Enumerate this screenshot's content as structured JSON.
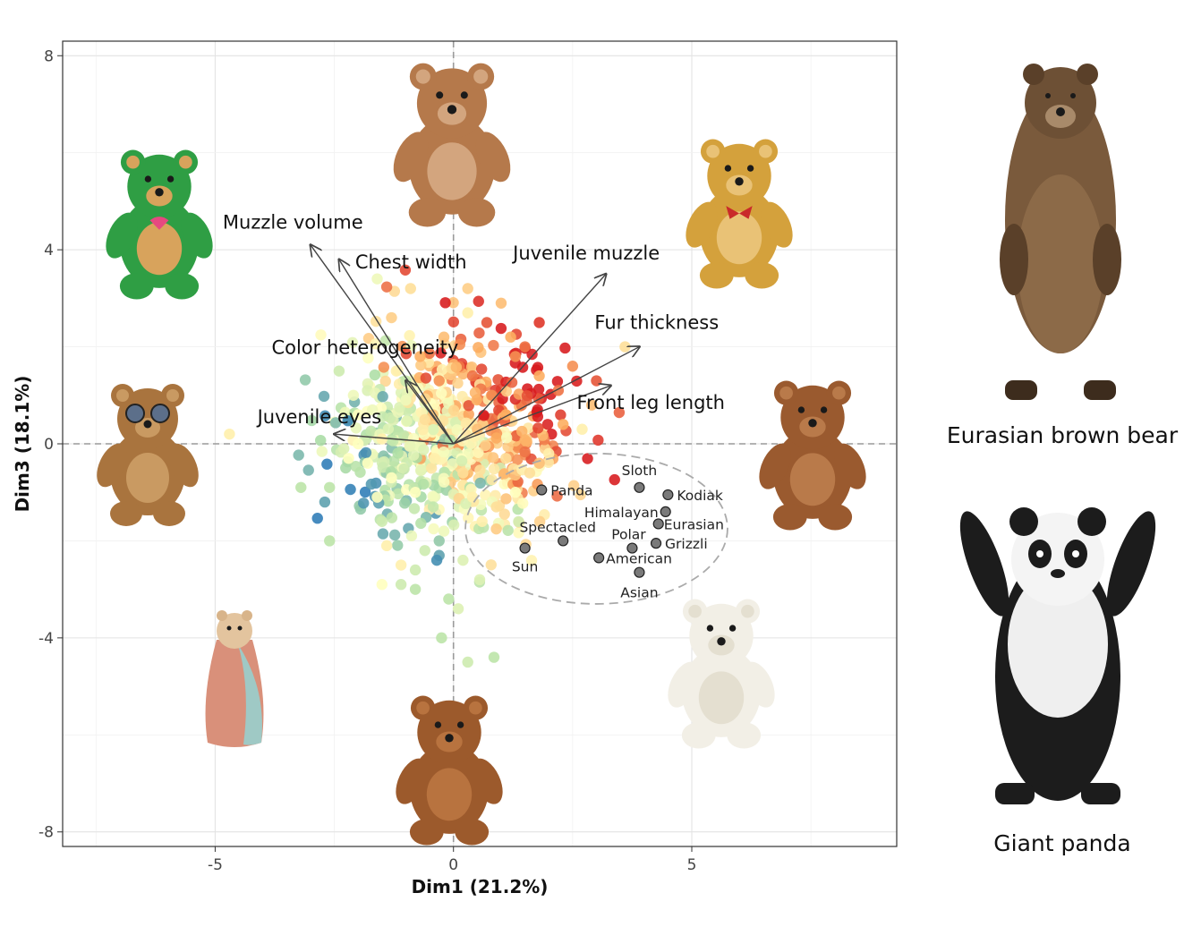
{
  "chart_data": {
    "type": "scatter",
    "title": "",
    "xlabel": "Dim1 (21.2%)",
    "ylabel": "Dim3 (18.1%)",
    "xlim": [
      -8.2,
      9.3
    ],
    "ylim": [
      -8.3,
      8.3
    ],
    "x_ticks": [
      -5,
      0,
      5
    ],
    "y_ticks": [
      -8,
      -4,
      0,
      4,
      8
    ],
    "grid": true,
    "reference_lines": {
      "x": 0,
      "y": 0,
      "style": "dashed"
    },
    "loadings": [
      {
        "name": "Muzzle volume",
        "x": -3.0,
        "y": 4.1
      },
      {
        "name": "Chest width",
        "x": -2.4,
        "y": 3.8
      },
      {
        "name": "Juvenile muzzle",
        "x": 3.2,
        "y": 3.5
      },
      {
        "name": "Fur thickness",
        "x": 3.9,
        "y": 2.0
      },
      {
        "name": "Front leg length",
        "x": 3.3,
        "y": 1.2
      },
      {
        "name": "Color heterogeneity",
        "x": -1.0,
        "y": 1.3
      },
      {
        "name": "Juvenile eyes",
        "x": -2.5,
        "y": 0.2
      }
    ],
    "bear_species": [
      {
        "name": "Sloth",
        "x": 3.9,
        "y": -0.9
      },
      {
        "name": "Kodiak",
        "x": 4.5,
        "y": -1.05
      },
      {
        "name": "Panda",
        "x": 1.85,
        "y": -0.95
      },
      {
        "name": "Himalayan",
        "x": 4.45,
        "y": -1.4
      },
      {
        "name": "Eurasian",
        "x": 4.3,
        "y": -1.65
      },
      {
        "name": "Spectacled",
        "x": 2.3,
        "y": -2.0
      },
      {
        "name": "Sun",
        "x": 1.5,
        "y": -2.15
      },
      {
        "name": "Polar",
        "x": 3.75,
        "y": -2.15
      },
      {
        "name": "Grizzli",
        "x": 4.25,
        "y": -2.05
      },
      {
        "name": "American",
        "x": 3.05,
        "y": -2.35
      },
      {
        "name": "Asian",
        "x": 3.9,
        "y": -2.65
      }
    ],
    "bear_species_ellipse": {
      "center": [
        3.0,
        -1.75
      ],
      "radius_x": 5.5,
      "radius_y": 3.1
    },
    "teddy_points": [
      {
        "x": -4.7,
        "y": 0.2,
        "c": 0.55
      },
      {
        "x": -3.2,
        "y": -0.9,
        "c": 0.3
      },
      {
        "x": -2.6,
        "y": -0.9,
        "c": 0.3
      },
      {
        "x": -2.7,
        "y": -1.2,
        "c": 0.1
      },
      {
        "x": -2.6,
        "y": -2.0,
        "c": 0.3
      },
      {
        "x": -2.2,
        "y": -0.3,
        "c": 0.5
      },
      {
        "x": -2.0,
        "y": 0.6,
        "c": 0.5
      },
      {
        "x": -2.4,
        "y": 1.5,
        "c": 0.35
      },
      {
        "x": -2.1,
        "y": 1.0,
        "c": 0.45
      },
      {
        "x": -1.7,
        "y": 0.7,
        "c": 0.45
      },
      {
        "x": -1.5,
        "y": 0.1,
        "c": 0.55
      },
      {
        "x": -1.8,
        "y": -0.4,
        "c": 0.5
      },
      {
        "x": -1.3,
        "y": -0.7,
        "c": 0.5
      },
      {
        "x": -1.6,
        "y": -1.1,
        "c": 0.5
      },
      {
        "x": -1.5,
        "y": -1.6,
        "c": 0.35
      },
      {
        "x": -1.4,
        "y": -2.1,
        "c": 0.55
      },
      {
        "x": -1.1,
        "y": -2.5,
        "c": 0.55
      },
      {
        "x": -1.5,
        "y": -2.9,
        "c": 0.5
      },
      {
        "x": -1.1,
        "y": -2.9,
        "c": 0.35
      },
      {
        "x": -0.8,
        "y": -3.0,
        "c": 0.3
      },
      {
        "x": -0.8,
        "y": -2.6,
        "c": 0.35
      },
      {
        "x": -0.6,
        "y": -2.2,
        "c": 0.35
      },
      {
        "x": -0.3,
        "y": -2.0,
        "c": 0.2
      },
      {
        "x": -0.3,
        "y": -2.3,
        "c": 0.1
      },
      {
        "x": -0.35,
        "y": -2.4,
        "c": 0.05
      },
      {
        "x": -0.2,
        "y": -1.8,
        "c": 0.45
      },
      {
        "x": 0.2,
        "y": -2.4,
        "c": 0.4
      },
      {
        "x": -0.1,
        "y": -3.2,
        "c": 0.3
      },
      {
        "x": 0.1,
        "y": -3.4,
        "c": 0.4
      },
      {
        "x": -0.25,
        "y": -4.0,
        "c": 0.3
      },
      {
        "x": 0.3,
        "y": -4.5,
        "c": 0.35
      },
      {
        "x": 0.85,
        "y": -4.4,
        "c": 0.3
      },
      {
        "x": 0.55,
        "y": -2.8,
        "c": 0.4
      },
      {
        "x": 0.6,
        "y": -1.6,
        "c": 0.55
      },
      {
        "x": 0.9,
        "y": -1.3,
        "c": 0.6
      },
      {
        "x": 1.3,
        "y": -1.0,
        "c": 0.5
      },
      {
        "x": 1.6,
        "y": -0.6,
        "c": 0.6
      },
      {
        "x": 1.8,
        "y": -0.4,
        "c": 0.7
      },
      {
        "x": 2.0,
        "y": -0.2,
        "c": 0.55
      },
      {
        "x": 2.3,
        "y": 0.4,
        "c": 0.75
      },
      {
        "x": 2.7,
        "y": 0.3,
        "c": 0.55
      },
      {
        "x": 2.9,
        "y": 0.8,
        "c": 0.7
      },
      {
        "x": 3.0,
        "y": 1.3,
        "c": 0.9
      },
      {
        "x": 3.6,
        "y": 2.0,
        "c": 0.6
      },
      {
        "x": 2.2,
        "y": 1.1,
        "c": 0.85
      },
      {
        "x": 1.8,
        "y": 2.5,
        "c": 0.95
      },
      {
        "x": 1.5,
        "y": 2.0,
        "c": 0.85
      },
      {
        "x": 1.2,
        "y": 2.2,
        "c": 0.75
      },
      {
        "x": 0.7,
        "y": 2.5,
        "c": 0.9
      },
      {
        "x": 0.3,
        "y": 3.2,
        "c": 0.65
      },
      {
        "x": 0.3,
        "y": 2.7,
        "c": 0.55
      },
      {
        "x": -0.9,
        "y": 3.2,
        "c": 0.6
      },
      {
        "x": -1.3,
        "y": 2.6,
        "c": 0.65
      },
      {
        "x": -1.6,
        "y": 3.4,
        "c": 0.45
      },
      {
        "x": -0.2,
        "y": 2.2,
        "c": 0.7
      },
      {
        "x": -0.7,
        "y": 1.8,
        "c": 0.75
      },
      {
        "x": -0.3,
        "y": 1.3,
        "c": 0.8
      },
      {
        "x": 0.4,
        "y": 1.4,
        "c": 0.85
      },
      {
        "x": 0.8,
        "y": 1.0,
        "c": 0.8
      },
      {
        "x": 1.1,
        "y": 0.6,
        "c": 0.75
      },
      {
        "x": 0.5,
        "y": 0.3,
        "c": 0.7
      },
      {
        "x": -0.6,
        "y": 0.5,
        "c": 0.6
      },
      {
        "x": -1.0,
        "y": 0.9,
        "c": 0.45
      },
      {
        "x": -0.4,
        "y": -0.3,
        "c": 0.55
      },
      {
        "x": 0.2,
        "y": -0.6,
        "c": 0.6
      },
      {
        "x": -0.8,
        "y": -1.0,
        "c": 0.5
      },
      {
        "x": 0.4,
        "y": -1.1,
        "c": 0.55
      },
      {
        "x": 1.3,
        "y": 1.8,
        "c": 0.8
      },
      {
        "x": 1.8,
        "y": 1.4,
        "c": 0.75
      },
      {
        "x": 2.5,
        "y": 1.6,
        "c": 0.8
      },
      {
        "x": 1.0,
        "y": 2.9,
        "c": 0.7
      },
      {
        "x": -2.0,
        "y": 0.0,
        "c": 0.5
      },
      {
        "x": -1.2,
        "y": 1.5,
        "c": 0.55
      },
      {
        "x": -2.3,
        "y": -0.1,
        "c": 0.4
      },
      {
        "x": 1.1,
        "y": -0.3,
        "c": 0.6
      }
    ],
    "cloud": {
      "center": [
        0.0,
        0.2
      ],
      "spread_x": 1.15,
      "spread_y": 1.05,
      "count": 620
    },
    "color_scale": {
      "low": "#2c7bb6",
      "mid_low": "#abdda4",
      "mid": "#ffffbf",
      "mid_high": "#fdae61",
      "high": "#d7191c"
    }
  },
  "side_labels": {
    "brown_bear": "Eurasian brown bear",
    "panda": "Giant panda"
  },
  "images": {
    "green_bear": "green teddy bear",
    "tan_bear": "tan teddy bear",
    "golden_bear": "golden teddy bear with red bow",
    "big_eyed_bear": "big-eyed teddy bear",
    "brown_standing_bear": "brown standing teddy bear",
    "polar_bear": "white polar bear figurine",
    "skittle": "skittle toy with number 2",
    "vintage_bear": "vintage jointed teddy bear",
    "real_brown_bear": "standing brown bear",
    "real_panda": "standing giant panda"
  }
}
